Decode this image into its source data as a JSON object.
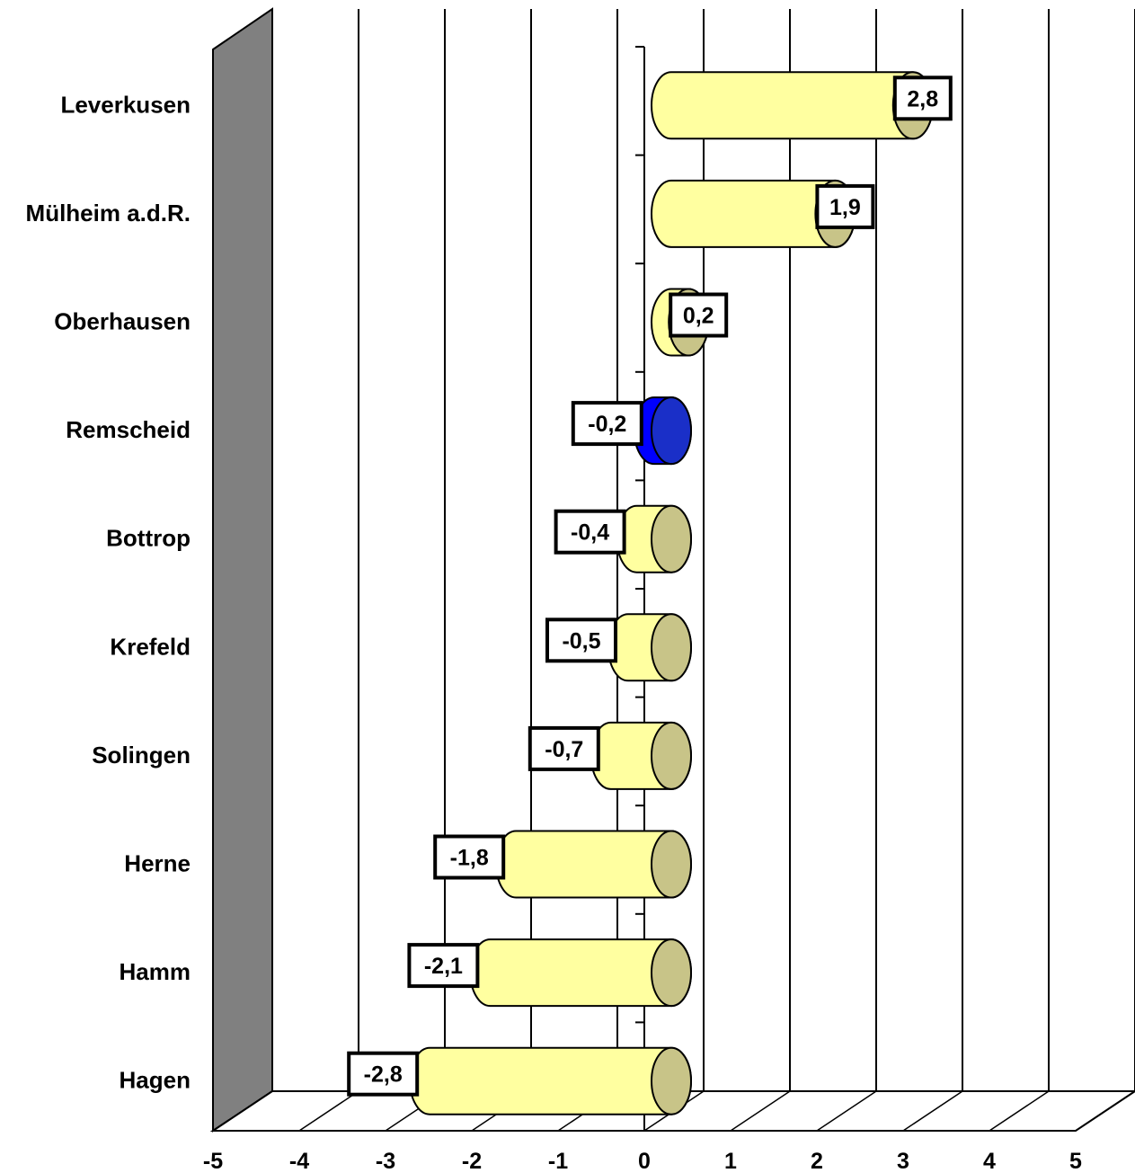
{
  "chart_data": {
    "type": "bar",
    "orientation": "horizontal",
    "style": "3d-cylinder",
    "categories": [
      "Leverkusen",
      "Mülheim a.d.R.",
      "Oberhausen",
      "Remscheid",
      "Bottrop",
      "Krefeld",
      "Solingen",
      "Herne",
      "Hamm",
      "Hagen"
    ],
    "values": [
      2.8,
      1.9,
      0.2,
      -0.2,
      -0.4,
      -0.5,
      -0.7,
      -1.8,
      -2.1,
      -2.8
    ],
    "value_labels": [
      "2,8",
      "1,9",
      "0,2",
      "-0,2",
      "-0,4",
      "-0,5",
      "-0,7",
      "-1,8",
      "-2,1",
      "-2,8"
    ],
    "highlighted_category": "Remscheid",
    "xlim": [
      -5,
      5
    ],
    "xticks": [
      "-5",
      "-4",
      "-3",
      "-2",
      "-1",
      "0",
      "1",
      "2",
      "3",
      "4",
      "5"
    ],
    "grid": true,
    "legend": false,
    "title": "",
    "xlabel": "",
    "ylabel": "",
    "colors": {
      "bar": "#FFFFA0",
      "bar_end": "#C8C488",
      "highlight": "#0000FF",
      "highlight_end": "#1A2FC8",
      "left_wall": "#808080",
      "gridline": "#000000"
    }
  }
}
